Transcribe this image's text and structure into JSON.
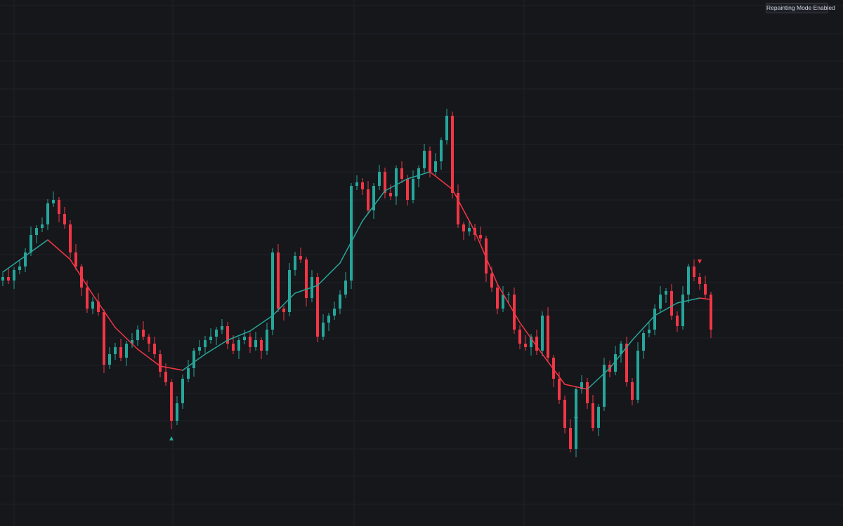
{
  "chart_data": {
    "type": "candlestick",
    "badge": "Repainting Mode Enabled",
    "xlim": [
      -0.5,
      149.5
    ],
    "ylim": [
      0,
      750
    ],
    "xticks": [
      2,
      30.25,
      62.5,
      92.75,
      123
    ],
    "yticks": [
      742,
      702,
      663,
      623,
      584,
      544,
      505,
      465,
      426,
      387,
      347,
      308,
      268,
      229,
      189,
      150,
      110,
      71,
      31
    ],
    "grid": true,
    "up_color": "#26a69a",
    "down_color": "#f23645",
    "open": [
      350,
      355,
      350,
      365,
      370,
      390,
      415,
      425,
      430,
      460,
      465,
      445,
      430,
      390,
      370,
      340,
      310,
      320,
      305,
      230,
      245,
      255,
      240,
      260,
      265,
      280,
      270,
      260,
      245,
      220,
      205,
      150,
      175,
      210,
      225,
      250,
      255,
      265,
      270,
      280,
      285,
      260,
      250,
      265,
      270,
      255,
      265,
      250,
      280,
      390,
      310,
      305,
      365,
      385,
      380,
      325,
      355,
      270,
      290,
      300,
      310,
      330,
      350,
      485,
      490,
      480,
      450,
      485,
      505,
      475,
      470,
      510,
      495,
      465,
      495,
      510,
      535,
      505,
      520,
      550,
      585,
      475,
      430,
      420,
      425,
      415,
      410,
      360,
      340,
      310,
      330,
      330,
      280,
      260,
      255,
      270,
      250,
      300,
      240,
      210,
      180,
      140,
      110,
      195,
      205,
      175,
      140,
      170,
      230,
      220,
      245,
      260,
      205,
      180,
      250,
      275,
      280,
      310,
      330,
      335,
      300,
      285,
      330,
      370,
      355,
      345,
      330
    ],
    "high": [
      361,
      367,
      369,
      380,
      396,
      427,
      429,
      440,
      466,
      477,
      469,
      455,
      436,
      402,
      374,
      350,
      326,
      332,
      309,
      255,
      261,
      267,
      264,
      275,
      286,
      292,
      274,
      270,
      251,
      232,
      209,
      185,
      216,
      237,
      254,
      265,
      271,
      282,
      284,
      295,
      291,
      272,
      269,
      280,
      276,
      277,
      269,
      290,
      396,
      402,
      314,
      375,
      391,
      397,
      384,
      365,
      361,
      302,
      304,
      320,
      336,
      362,
      489,
      500,
      496,
      492,
      489,
      515,
      511,
      487,
      514,
      520,
      501,
      507,
      514,
      545,
      541,
      532,
      554,
      595,
      591,
      487,
      434,
      435,
      431,
      427,
      414,
      370,
      346,
      342,
      334,
      340,
      286,
      272,
      274,
      280,
      306,
      312,
      244,
      220,
      186,
      152,
      199,
      215,
      211,
      187,
      174,
      240,
      236,
      257,
      264,
      270,
      211,
      262,
      279,
      290,
      316,
      342,
      339,
      345,
      306,
      342,
      374,
      380,
      361,
      357,
      334
    ],
    "low": [
      342,
      345,
      338,
      359,
      362,
      385,
      403,
      419,
      422,
      455,
      433,
      424,
      382,
      365,
      328,
      304,
      302,
      300,
      218,
      224,
      237,
      235,
      228,
      254,
      257,
      265,
      248,
      239,
      212,
      200,
      138,
      144,
      167,
      205,
      213,
      244,
      247,
      260,
      258,
      274,
      252,
      245,
      238,
      259,
      247,
      250,
      238,
      244,
      272,
      305,
      293,
      299,
      357,
      375,
      313,
      319,
      262,
      265,
      278,
      294,
      302,
      325,
      338,
      479,
      472,
      445,
      438,
      479,
      467,
      465,
      458,
      489,
      457,
      460,
      483,
      504,
      497,
      500,
      508,
      544,
      467,
      425,
      408,
      414,
      407,
      405,
      348,
      334,
      302,
      305,
      318,
      274,
      252,
      250,
      243,
      244,
      242,
      235,
      198,
      174,
      132,
      105,
      98,
      189,
      167,
      135,
      128,
      164,
      212,
      215,
      233,
      199,
      172,
      175,
      238,
      269,
      272,
      305,
      318,
      294,
      277,
      280,
      318,
      349,
      337,
      325,
      268
    ],
    "close": [
      355,
      350,
      365,
      370,
      390,
      415,
      425,
      430,
      460,
      465,
      445,
      430,
      390,
      370,
      340,
      310,
      320,
      305,
      230,
      245,
      255,
      240,
      260,
      265,
      280,
      270,
      260,
      245,
      220,
      205,
      150,
      175,
      210,
      225,
      250,
      255,
      265,
      270,
      280,
      285,
      260,
      250,
      265,
      270,
      255,
      265,
      250,
      280,
      390,
      310,
      305,
      365,
      385,
      380,
      325,
      355,
      270,
      290,
      300,
      310,
      330,
      350,
      485,
      490,
      480,
      450,
      485,
      505,
      475,
      470,
      510,
      495,
      465,
      495,
      510,
      535,
      505,
      520,
      550,
      585,
      475,
      430,
      420,
      425,
      415,
      410,
      360,
      340,
      310,
      330,
      330,
      280,
      260,
      255,
      270,
      250,
      300,
      240,
      210,
      180,
      140,
      110,
      195,
      205,
      175,
      140,
      170,
      230,
      220,
      245,
      260,
      205,
      180,
      250,
      275,
      280,
      310,
      330,
      335,
      300,
      285,
      330,
      370,
      355,
      345,
      330,
      280
    ],
    "line": {
      "x": [
        0,
        4,
        8,
        12,
        16,
        20,
        24,
        28,
        32,
        36,
        40,
        44,
        48,
        52,
        56,
        60,
        64,
        68,
        72,
        76,
        80,
        84,
        88,
        92,
        96,
        100,
        104,
        108,
        112,
        116,
        120,
        124,
        126
      ],
      "values": [
        362,
        385,
        408,
        380,
        330,
        283,
        252,
        228,
        222,
        245,
        265,
        278,
        300,
        332,
        343,
        375,
        435,
        478,
        495,
        505,
        480,
        420,
        345,
        290,
        245,
        202,
        195,
        225,
        265,
        300,
        318,
        325,
        323
      ]
    },
    "buy_signals": {
      "x": [
        30,
        102
      ],
      "values": [
        125,
        157
      ]
    },
    "sell_signals": {
      "x": [
        124
      ],
      "values": [
        377
      ]
    }
  }
}
